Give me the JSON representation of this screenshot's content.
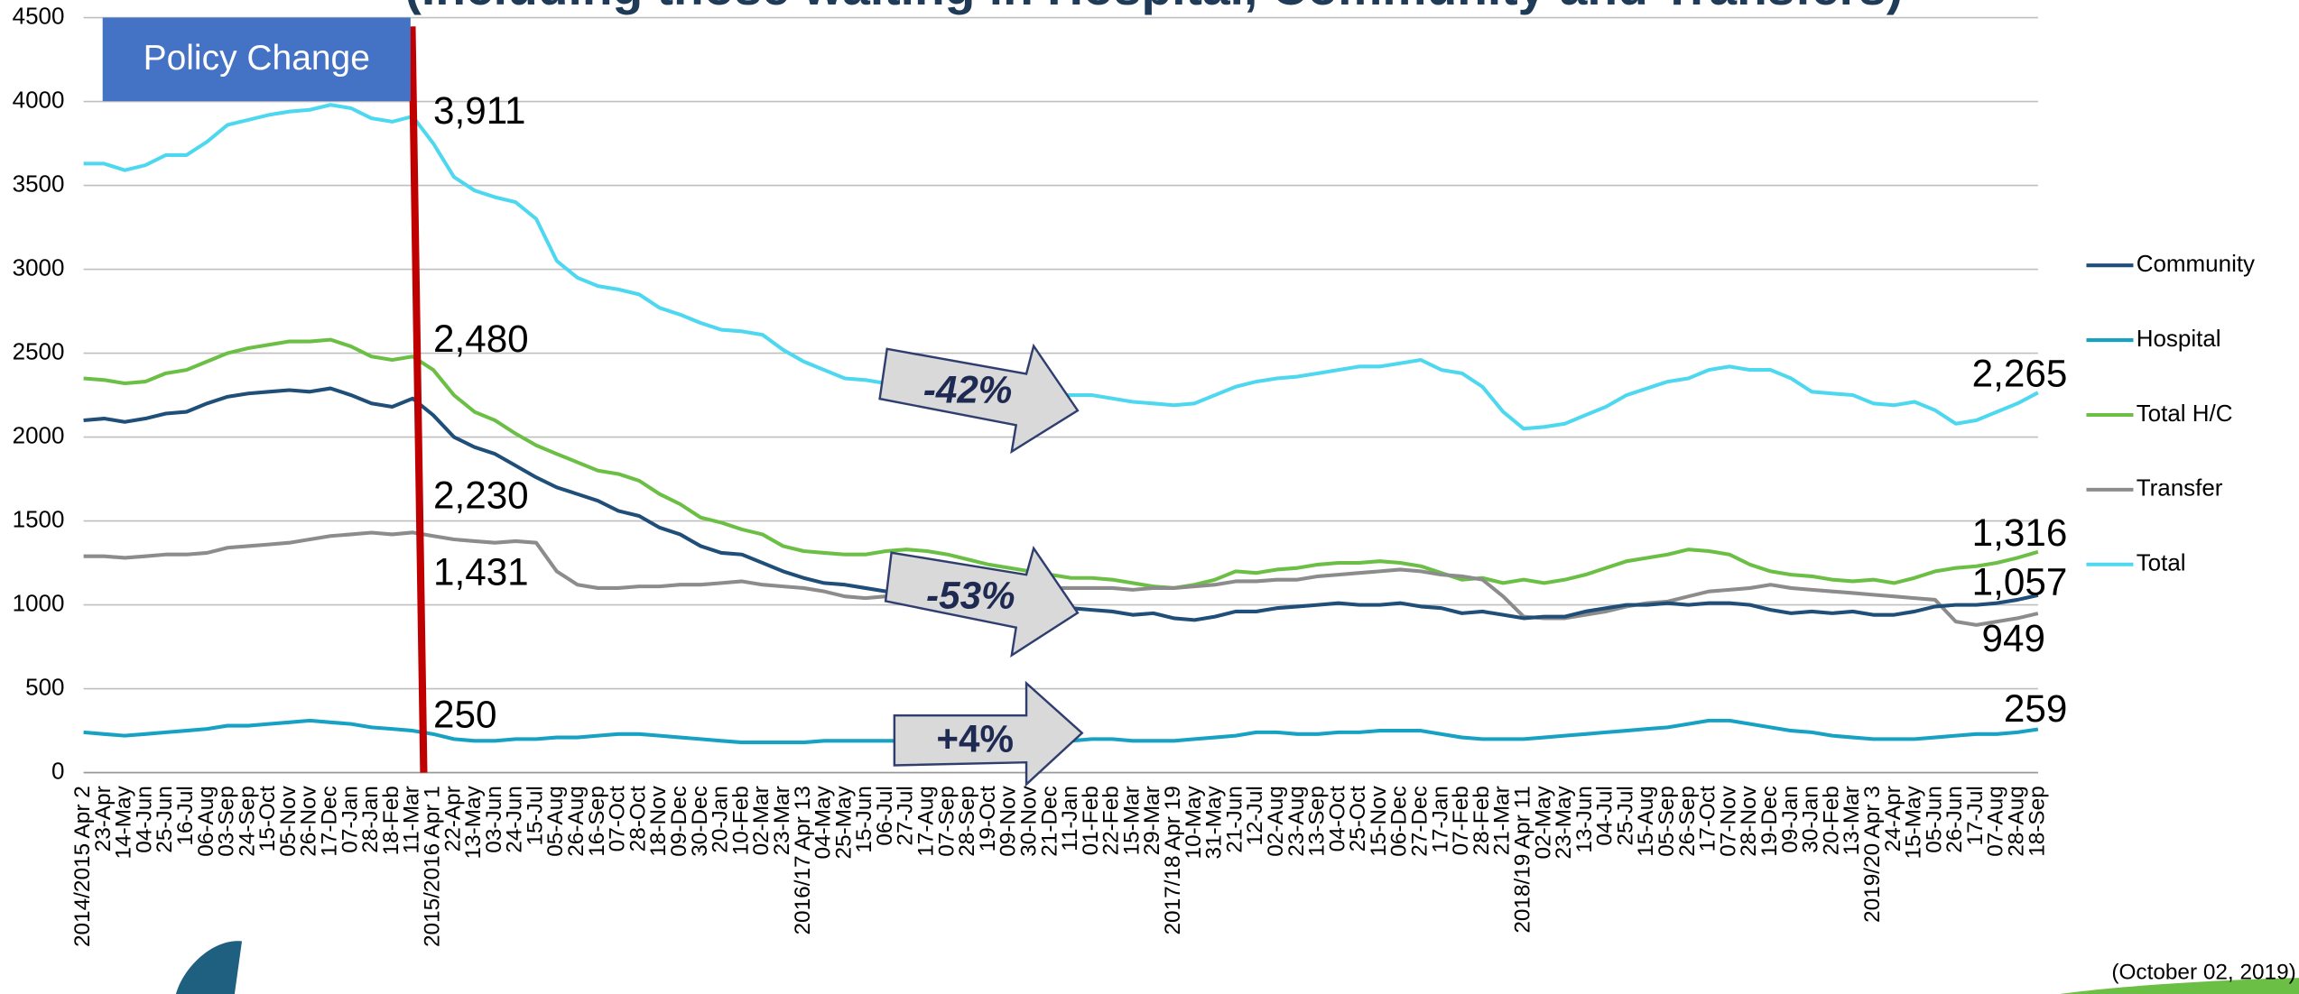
{
  "chart_data": {
    "type": "line",
    "title": "(Including those waiting in Hospital, Community and Transfers)",
    "categories": [
      "2014/2015 Apr 2",
      "23-Apr",
      "14-May",
      "04-Jun",
      "25-Jun",
      "16-Jul",
      "06-Aug",
      "03-Sep",
      "24-Sep",
      "15-Oct",
      "05-Nov",
      "26-Nov",
      "17-Dec",
      "07-Jan",
      "28-Jan",
      "18-Feb",
      "11-Mar",
      "2015/2016 Apr 1",
      "22-Apr",
      "13-May",
      "03-Jun",
      "24-Jun",
      "15-Jul",
      "05-Aug",
      "26-Aug",
      "16-Sep",
      "07-Oct",
      "28-Oct",
      "18-Nov",
      "09-Dec",
      "30-Dec",
      "20-Jan",
      "10-Feb",
      "02-Mar",
      "23-Mar",
      "2016/17 Apr 13",
      "04-May",
      "25-May",
      "15-Jun",
      "06-Jul",
      "27-Jul",
      "17-Aug",
      "07-Sep",
      "28-Sep",
      "19-Oct",
      "09-Nov",
      "30-Nov",
      "21-Dec",
      "11-Jan",
      "01-Feb",
      "22-Feb",
      "15-Mar",
      "29-Mar",
      "2017/18 Apr 19",
      "10-May",
      "31-May",
      "21-Jun",
      "12-Jul",
      "02-Aug",
      "23-Aug",
      "13-Sep",
      "04-Oct",
      "25-Oct",
      "15-Nov",
      "06-Dec",
      "27-Dec",
      "17-Jan",
      "07-Feb",
      "28-Feb",
      "21-Mar",
      "2018/19 Apr 11",
      "02-May",
      "23-May",
      "13-Jun",
      "04-Jul",
      "25-Jul",
      "15-Aug",
      "05-Sep",
      "26-Sep",
      "17-Oct",
      "07-Nov",
      "28-Nov",
      "19-Dec",
      "09-Jan",
      "30-Jan",
      "20-Feb",
      "13-Mar",
      "2019/20 Apr 3",
      "24-Apr",
      "15-May",
      "05-Jun",
      "26-Jun",
      "17-Jul",
      "07-Aug",
      "28-Aug",
      "18-Sep"
    ],
    "series": [
      {
        "name": "Community",
        "color": "#1f4e79",
        "values": [
          2100,
          2110,
          2090,
          2110,
          2140,
          2150,
          2200,
          2240,
          2260,
          2270,
          2280,
          2270,
          2290,
          2250,
          2200,
          2180,
          2230,
          2130,
          2000,
          1940,
          1900,
          1830,
          1760,
          1700,
          1660,
          1620,
          1560,
          1530,
          1460,
          1420,
          1350,
          1310,
          1300,
          1250,
          1200,
          1160,
          1130,
          1120,
          1100,
          1080,
          1070,
          1050,
          1040,
          1030,
          1020,
          1010,
          1000,
          990,
          980,
          970,
          960,
          940,
          950,
          920,
          910,
          930,
          960,
          960,
          980,
          990,
          1000,
          1010,
          1000,
          1000,
          1010,
          990,
          980,
          950,
          960,
          940,
          920,
          930,
          930,
          960,
          980,
          1000,
          1000,
          1010,
          1000,
          1010,
          1010,
          1000,
          970,
          950,
          960,
          950,
          960,
          940,
          940,
          960,
          990,
          1000,
          1000,
          1010,
          1030,
          1057
        ],
        "value_labels": [
          null,
          null,
          null,
          null,
          null,
          null,
          null,
          null,
          null,
          null,
          null,
          null,
          null,
          null,
          null,
          null,
          "2,230",
          null,
          null,
          null,
          null,
          null,
          null,
          null,
          null,
          null,
          null,
          null,
          null,
          null,
          null,
          null,
          null,
          null,
          null,
          null,
          null,
          null,
          null,
          null,
          null,
          null,
          null,
          null,
          null,
          null,
          null,
          null,
          null,
          null,
          null,
          null,
          null,
          null,
          null,
          null,
          null,
          null,
          null,
          null,
          null,
          null,
          null,
          null,
          null,
          null,
          null,
          null,
          null,
          null,
          null,
          null,
          null,
          null,
          null,
          null,
          null,
          null,
          null,
          null,
          null,
          null,
          null,
          null,
          null,
          null,
          null,
          null,
          null,
          null,
          null,
          null,
          null,
          null,
          null,
          "1,057"
        ]
      },
      {
        "name": "Hospital",
        "color": "#17a2c4",
        "values": [
          240,
          230,
          220,
          230,
          240,
          250,
          260,
          280,
          280,
          290,
          300,
          310,
          300,
          290,
          270,
          260,
          250,
          230,
          200,
          190,
          190,
          200,
          200,
          210,
          210,
          220,
          230,
          230,
          220,
          210,
          200,
          190,
          180,
          180,
          180,
          180,
          190,
          190,
          190,
          190,
          190,
          190,
          190,
          190,
          190,
          190,
          190,
          190,
          190,
          200,
          200,
          190,
          190,
          190,
          200,
          210,
          220,
          240,
          240,
          230,
          230,
          240,
          240,
          250,
          250,
          250,
          230,
          210,
          200,
          200,
          200,
          210,
          220,
          230,
          240,
          250,
          260,
          270,
          290,
          310,
          310,
          290,
          270,
          250,
          240,
          220,
          210,
          200,
          200,
          200,
          210,
          220,
          230,
          230,
          240,
          259
        ],
        "value_labels": [
          null,
          null,
          null,
          null,
          null,
          null,
          null,
          null,
          null,
          null,
          null,
          null,
          null,
          null,
          null,
          null,
          "250",
          null,
          null,
          null,
          null,
          null,
          null,
          null,
          null,
          null,
          null,
          null,
          null,
          null,
          null,
          null,
          null,
          null,
          null,
          null,
          null,
          null,
          null,
          null,
          null,
          null,
          null,
          null,
          null,
          null,
          null,
          null,
          null,
          null,
          null,
          null,
          null,
          null,
          null,
          null,
          null,
          null,
          null,
          null,
          null,
          null,
          null,
          null,
          null,
          null,
          null,
          null,
          null,
          null,
          null,
          null,
          null,
          null,
          null,
          null,
          null,
          null,
          null,
          null,
          null,
          null,
          null,
          null,
          null,
          null,
          null,
          null,
          null,
          null,
          null,
          null,
          null,
          null,
          null,
          "259"
        ]
      },
      {
        "name": "Total H/C",
        "color": "#6cbf45",
        "values": [
          2350,
          2340,
          2320,
          2330,
          2380,
          2400,
          2450,
          2500,
          2530,
          2550,
          2570,
          2570,
          2580,
          2540,
          2480,
          2460,
          2480,
          2400,
          2250,
          2150,
          2100,
          2020,
          1950,
          1900,
          1850,
          1800,
          1780,
          1740,
          1660,
          1600,
          1520,
          1490,
          1450,
          1420,
          1350,
          1320,
          1310,
          1300,
          1300,
          1320,
          1330,
          1320,
          1300,
          1270,
          1240,
          1220,
          1200,
          1180,
          1160,
          1160,
          1150,
          1130,
          1110,
          1100,
          1120,
          1150,
          1200,
          1190,
          1210,
          1220,
          1240,
          1250,
          1250,
          1260,
          1250,
          1230,
          1190,
          1150,
          1160,
          1130,
          1150,
          1130,
          1150,
          1180,
          1220,
          1260,
          1280,
          1300,
          1330,
          1320,
          1300,
          1240,
          1200,
          1180,
          1170,
          1150,
          1140,
          1150,
          1130,
          1160,
          1200,
          1220,
          1230,
          1250,
          1280,
          1316
        ],
        "value_labels": [
          null,
          null,
          null,
          null,
          null,
          null,
          null,
          null,
          null,
          null,
          null,
          null,
          null,
          null,
          null,
          null,
          "2,480",
          null,
          null,
          null,
          null,
          null,
          null,
          null,
          null,
          null,
          null,
          null,
          null,
          null,
          null,
          null,
          null,
          null,
          null,
          null,
          null,
          null,
          null,
          null,
          null,
          null,
          null,
          null,
          null,
          null,
          null,
          null,
          null,
          null,
          null,
          null,
          null,
          null,
          null,
          null,
          null,
          null,
          null,
          null,
          null,
          null,
          null,
          null,
          null,
          null,
          null,
          null,
          null,
          null,
          null,
          null,
          null,
          null,
          null,
          null,
          null,
          null,
          null,
          null,
          null,
          null,
          null,
          null,
          null,
          null,
          null,
          null,
          null,
          null,
          null,
          null,
          null,
          null,
          null,
          "1,316"
        ]
      },
      {
        "name": "Transfer",
        "color": "#8c8c8c",
        "values": [
          1290,
          1290,
          1280,
          1290,
          1300,
          1300,
          1310,
          1340,
          1350,
          1360,
          1370,
          1390,
          1410,
          1420,
          1430,
          1420,
          1431,
          1410,
          1390,
          1380,
          1370,
          1380,
          1370,
          1200,
          1120,
          1100,
          1100,
          1110,
          1110,
          1120,
          1120,
          1130,
          1140,
          1120,
          1110,
          1100,
          1080,
          1050,
          1040,
          1050,
          1060,
          1070,
          1070,
          1080,
          1080,
          1090,
          1090,
          1100,
          1100,
          1100,
          1100,
          1090,
          1100,
          1100,
          1110,
          1120,
          1140,
          1140,
          1150,
          1150,
          1170,
          1180,
          1190,
          1200,
          1210,
          1200,
          1180,
          1170,
          1150,
          1050,
          930,
          920,
          920,
          940,
          960,
          990,
          1010,
          1020,
          1050,
          1080,
          1090,
          1100,
          1120,
          1100,
          1090,
          1080,
          1070,
          1060,
          1050,
          1040,
          1030,
          900,
          880,
          900,
          920,
          949
        ],
        "value_labels": [
          null,
          null,
          null,
          null,
          null,
          null,
          null,
          null,
          null,
          null,
          null,
          null,
          null,
          null,
          null,
          null,
          "1,431",
          null,
          null,
          null,
          null,
          null,
          null,
          null,
          null,
          null,
          null,
          null,
          null,
          null,
          null,
          null,
          null,
          null,
          null,
          null,
          null,
          null,
          null,
          null,
          null,
          null,
          null,
          null,
          null,
          null,
          null,
          null,
          null,
          null,
          null,
          null,
          null,
          null,
          null,
          null,
          null,
          null,
          null,
          null,
          null,
          null,
          null,
          null,
          null,
          null,
          null,
          null,
          null,
          null,
          null,
          null,
          null,
          null,
          null,
          null,
          null,
          null,
          null,
          null,
          null,
          null,
          null,
          null,
          null,
          null,
          null,
          null,
          null,
          null,
          null,
          null,
          null,
          null,
          null,
          "949"
        ]
      },
      {
        "name": "Total",
        "color": "#4dd8f0",
        "values": [
          3630,
          3630,
          3590,
          3620,
          3680,
          3680,
          3760,
          3860,
          3890,
          3920,
          3940,
          3950,
          3980,
          3960,
          3900,
          3880,
          3911,
          3750,
          3550,
          3470,
          3430,
          3400,
          3300,
          3050,
          2950,
          2900,
          2880,
          2850,
          2770,
          2730,
          2680,
          2640,
          2630,
          2610,
          2520,
          2450,
          2400,
          2350,
          2340,
          2320,
          2310,
          2300,
          2290,
          2280,
          2270,
          2260,
          2250,
          2250,
          2250,
          2250,
          2230,
          2210,
          2200,
          2190,
          2200,
          2250,
          2300,
          2330,
          2350,
          2360,
          2380,
          2400,
          2420,
          2420,
          2440,
          2460,
          2400,
          2380,
          2300,
          2150,
          2050,
          2060,
          2080,
          2130,
          2180,
          2250,
          2290,
          2330,
          2350,
          2400,
          2420,
          2400,
          2400,
          2350,
          2270,
          2260,
          2250,
          2200,
          2190,
          2210,
          2160,
          2080,
          2100,
          2150,
          2200,
          2265
        ],
        "value_labels": [
          null,
          null,
          null,
          null,
          null,
          null,
          null,
          null,
          null,
          null,
          null,
          null,
          null,
          null,
          null,
          null,
          "3,911",
          null,
          null,
          null,
          null,
          null,
          null,
          null,
          null,
          null,
          null,
          null,
          null,
          null,
          null,
          null,
          null,
          null,
          null,
          null,
          null,
          null,
          null,
          null,
          null,
          null,
          null,
          null,
          null,
          null,
          null,
          null,
          null,
          null,
          null,
          null,
          null,
          null,
          null,
          null,
          null,
          null,
          null,
          null,
          null,
          null,
          null,
          null,
          null,
          null,
          null,
          null,
          null,
          null,
          null,
          null,
          null,
          null,
          null,
          null,
          null,
          null,
          null,
          null,
          null,
          null,
          null,
          null,
          null,
          null,
          null,
          null,
          null,
          null,
          null,
          null,
          null,
          null,
          null,
          "2,265"
        ]
      }
    ],
    "ylim": [
      0,
      4500
    ],
    "yticks": [
      0,
      500,
      1000,
      1500,
      2000,
      2500,
      3000,
      3500,
      4000,
      4500
    ],
    "grid": true,
    "legend": "right",
    "annotations": [
      "Policy Change",
      "-42%",
      "-53%",
      "+4%"
    ],
    "footnote": "(October 02, 2019)"
  }
}
